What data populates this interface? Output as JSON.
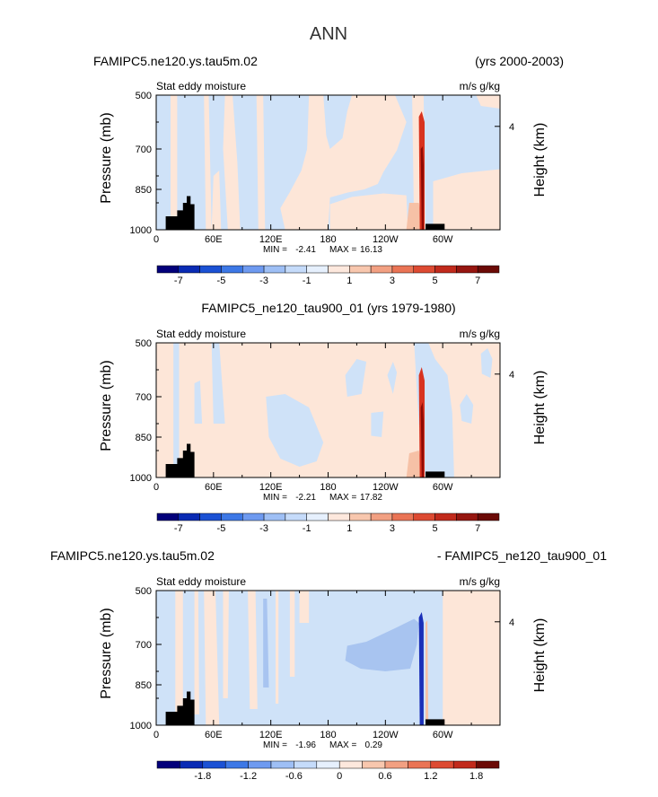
{
  "figure": {
    "title": "ANN"
  },
  "chart_data": [
    {
      "type": "heatmap",
      "left_title": "FAMIPC5.ne120.ys.tau5m.02",
      "right_title": "(yrs 2000-2003)",
      "center_title": "",
      "subtitle_left": "Stat eddy moisture",
      "subtitle_right": "m/s g/kg",
      "ylabel": "Pressure (mb)",
      "ylabel_right": "Height (km)",
      "x_ticks": [
        "0",
        "60E",
        "120E",
        "180",
        "120W",
        "60W"
      ],
      "x_range": [
        0,
        360
      ],
      "y_ticks": [
        "500",
        "700",
        "850",
        "1000"
      ],
      "y_tick_values": [
        500,
        700,
        850,
        1000
      ],
      "y_range": [
        500,
        1000
      ],
      "right_ticks": [
        "4"
      ],
      "right_tick_pressure": [
        616
      ],
      "min_label": "MIN =",
      "min_value": "-2.41",
      "max_label": "MAX =",
      "max_value": "16.13",
      "colorbar_labels": [
        "-7",
        "-5",
        "-3",
        "-1",
        "1",
        "3",
        "5",
        "7"
      ],
      "colorbar_colors": [
        "#03007a",
        "#0a2bb4",
        "#1b51d4",
        "#3d78e6",
        "#6e9af0",
        "#9ebff5",
        "#c5dbfa",
        "#e6f0fd",
        "#fde8dd",
        "#f8c7ae",
        "#f2a082",
        "#ea7455",
        "#dd4a32",
        "#c12a1c",
        "#961610",
        "#6b0a06"
      ]
    },
    {
      "type": "heatmap",
      "left_title": "",
      "right_title": "",
      "center_title": "FAMIPC5_ne120_tau900_01 (yrs 1979-1980)",
      "subtitle_left": "Stat eddy moisture",
      "subtitle_right": "m/s g/kg",
      "ylabel": "Pressure (mb)",
      "ylabel_right": "Height (km)",
      "x_ticks": [
        "0",
        "60E",
        "120E",
        "180",
        "120W",
        "60W"
      ],
      "x_range": [
        0,
        360
      ],
      "y_ticks": [
        "500",
        "700",
        "850",
        "1000"
      ],
      "y_tick_values": [
        500,
        700,
        850,
        1000
      ],
      "y_range": [
        500,
        1000
      ],
      "right_ticks": [
        "4"
      ],
      "right_tick_pressure": [
        616
      ],
      "min_label": "MIN =",
      "min_value": "-2.21",
      "max_label": "MAX =",
      "max_value": "17.82",
      "colorbar_labels": [
        "-7",
        "-5",
        "-3",
        "-1",
        "1",
        "3",
        "5",
        "7"
      ],
      "colorbar_colors": [
        "#03007a",
        "#0a2bb4",
        "#1b51d4",
        "#3d78e6",
        "#6e9af0",
        "#9ebff5",
        "#c5dbfa",
        "#e6f0fd",
        "#fde8dd",
        "#f8c7ae",
        "#f2a082",
        "#ea7455",
        "#dd4a32",
        "#c12a1c",
        "#961610",
        "#6b0a06"
      ]
    },
    {
      "type": "heatmap",
      "left_title": "FAMIPC5.ne120.ys.tau5m.02",
      "right_title": "- FAMIPC5_ne120_tau900_01",
      "center_title": "",
      "subtitle_left": "Stat eddy moisture",
      "subtitle_right": "m/s g/kg",
      "ylabel": "Pressure (mb)",
      "ylabel_right": "Height (km)",
      "x_ticks": [
        "0",
        "60E",
        "120E",
        "180",
        "120W",
        "60W"
      ],
      "x_range": [
        0,
        360
      ],
      "y_ticks": [
        "500",
        "700",
        "850",
        "1000"
      ],
      "y_tick_values": [
        500,
        700,
        850,
        1000
      ],
      "y_range": [
        500,
        1000
      ],
      "right_ticks": [
        "4"
      ],
      "right_tick_pressure": [
        616
      ],
      "min_label": "MIN =",
      "min_value": "-1.96",
      "max_label": "MAX =",
      "max_value": "0.29",
      "colorbar_labels": [
        "-1.8",
        "-1.2",
        "-0.6",
        "0",
        "0.6",
        "1.2",
        "1.8"
      ],
      "colorbar_colors": [
        "#03007a",
        "#0a2bb4",
        "#1b51d4",
        "#3d78e6",
        "#6e9af0",
        "#9ebff5",
        "#c5dbfa",
        "#e6f0fd",
        "#fde8dd",
        "#f8c7ae",
        "#f2a082",
        "#ea7455",
        "#dd4a32",
        "#c12a1c",
        "#6b0a06"
      ]
    }
  ],
  "colors": {
    "neg_light": "#cfe2f8",
    "pos_light": "#fde6d8",
    "neg_mid": "#a8c4f0",
    "pos_mid": "#f6c1a6",
    "red": "#d8331f",
    "dark_red": "#8c0b05",
    "dark_blue": "#1a2fb8",
    "terrain": "#000000"
  }
}
